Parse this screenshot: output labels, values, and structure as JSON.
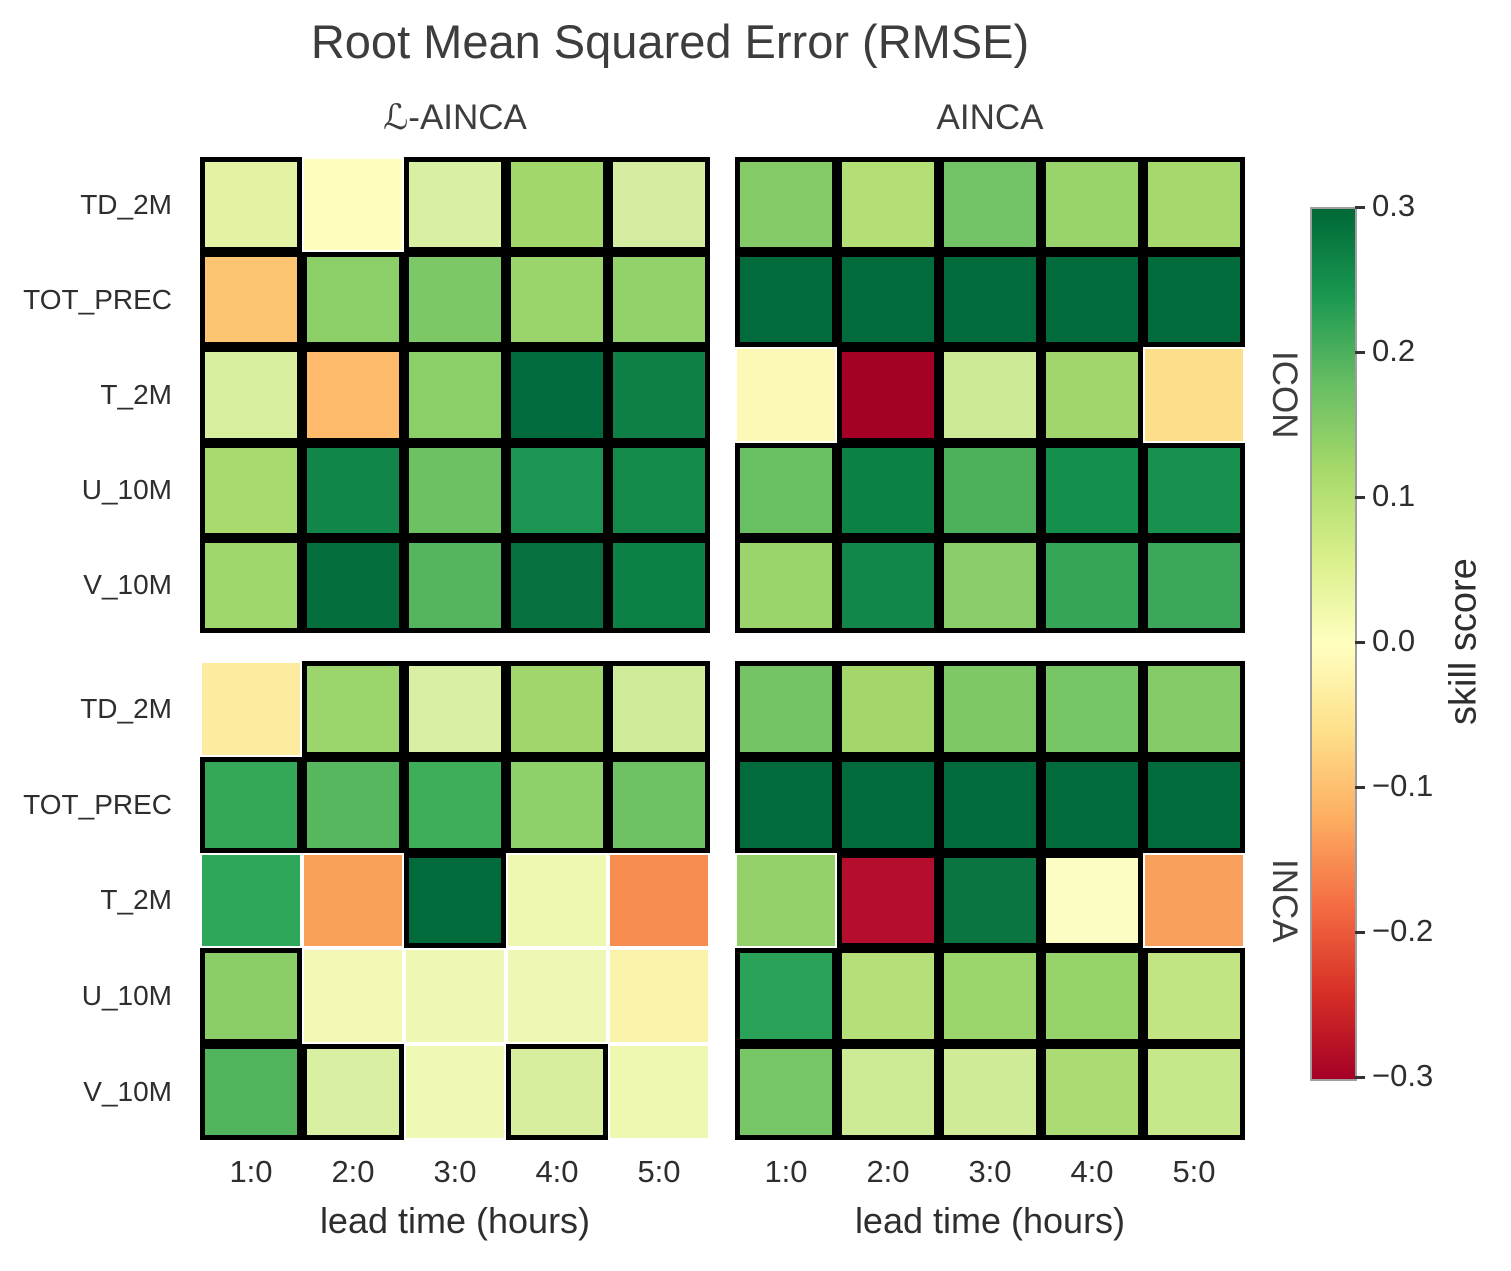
{
  "title": "Root Mean Squared Error (RMSE)",
  "panel_titles": [
    "ℒ-AINCA",
    "AINCA"
  ],
  "group_labels": [
    "ICON",
    "INCA"
  ],
  "xlabel": "lead time (hours)",
  "colorbar": {
    "label": "skill score",
    "ticks": [
      "0.3",
      "0.2",
      "0.1",
      "0.0",
      "−0.1",
      "−0.2",
      "−0.3"
    ],
    "vmin": -0.3,
    "vmax": 0.3,
    "colormap": "RdYlGn",
    "gradient": [
      "#006837",
      "#1a9850",
      "#66bd63",
      "#a6d96a",
      "#d9ef8b",
      "#ffffbf",
      "#fee08b",
      "#fdae61",
      "#f46d43",
      "#d73027",
      "#a50026"
    ]
  },
  "chart_data": {
    "type": "heatmap",
    "x": [
      "1:0",
      "2:0",
      "3:0",
      "4:0",
      "5:0"
    ],
    "y": [
      "TD_2M",
      "TOT_PREC",
      "T_2M",
      "U_10M",
      "V_10M"
    ],
    "value_range": [
      -0.3,
      0.3
    ],
    "legend_note": "thick black cell border = significant, thin white border = not significant",
    "panels": [
      {
        "model": "ℒ-AINCA",
        "reference": "ICON",
        "cells": [
          [
            {
              "v": 0.04,
              "c": "#e3f3a4",
              "s": true
            },
            {
              "v": 0.0,
              "c": "#fdfdc0",
              "s": false
            },
            {
              "v": 0.05,
              "c": "#d9efa2",
              "s": true
            },
            {
              "v": 0.12,
              "c": "#a2d76c",
              "s": true
            },
            {
              "v": 0.055,
              "c": "#d5eda0",
              "s": true
            }
          ],
          [
            {
              "v": -0.1,
              "c": "#fdc472",
              "s": true
            },
            {
              "v": 0.145,
              "c": "#8ccf69",
              "s": true
            },
            {
              "v": 0.16,
              "c": "#7cc766",
              "s": true
            },
            {
              "v": 0.135,
              "c": "#9ad46b",
              "s": true
            },
            {
              "v": 0.14,
              "c": "#93d26a",
              "s": true
            }
          ],
          [
            {
              "v": 0.055,
              "c": "#d7ef9f",
              "s": true
            },
            {
              "v": -0.105,
              "c": "#fdbb6b",
              "s": true
            },
            {
              "v": 0.145,
              "c": "#8bcf69",
              "s": true
            },
            {
              "v": 0.295,
              "c": "#006b3c",
              "s": true
            },
            {
              "v": 0.26,
              "c": "#0e8046",
              "s": true
            }
          ],
          [
            {
              "v": 0.115,
              "c": "#a8da6e",
              "s": true
            },
            {
              "v": 0.255,
              "c": "#128549",
              "s": true
            },
            {
              "v": 0.175,
              "c": "#6cc163",
              "s": true
            },
            {
              "v": 0.24,
              "c": "#1d9552",
              "s": true
            },
            {
              "v": 0.25,
              "c": "#148949",
              "s": true
            }
          ],
          [
            {
              "v": 0.12,
              "c": "#a0d76c",
              "s": true
            },
            {
              "v": 0.29,
              "c": "#046e3d",
              "s": true
            },
            {
              "v": 0.195,
              "c": "#55b55e",
              "s": true
            },
            {
              "v": 0.285,
              "c": "#06713f",
              "s": true
            },
            {
              "v": 0.26,
              "c": "#0d8045",
              "s": true
            }
          ]
        ]
      },
      {
        "model": "AINCA",
        "reference": "ICON",
        "cells": [
          [
            {
              "v": 0.155,
              "c": "#84ca67",
              "s": true
            },
            {
              "v": 0.1,
              "c": "#b4de76",
              "s": true
            },
            {
              "v": 0.17,
              "c": "#71c365",
              "s": true
            },
            {
              "v": 0.13,
              "c": "#98d36b",
              "s": true
            },
            {
              "v": 0.115,
              "c": "#a6d86d",
              "s": true
            }
          ],
          [
            {
              "v": 0.295,
              "c": "#016b3c",
              "s": true
            },
            {
              "v": 0.295,
              "c": "#016b3c",
              "s": true
            },
            {
              "v": 0.295,
              "c": "#016b3c",
              "s": true
            },
            {
              "v": 0.295,
              "c": "#016b3c",
              "s": true
            },
            {
              "v": 0.295,
              "c": "#016b3c",
              "s": true
            }
          ],
          [
            {
              "v": 0.005,
              "c": "#fcf9b6",
              "s": false
            },
            {
              "v": -0.295,
              "c": "#a50126",
              "s": true
            },
            {
              "v": 0.07,
              "c": "#cdea97",
              "s": true
            },
            {
              "v": 0.12,
              "c": "#a0d66c",
              "s": true
            },
            {
              "v": -0.06,
              "c": "#fdde8a",
              "s": false
            }
          ],
          [
            {
              "v": 0.18,
              "c": "#68c063",
              "s": true
            },
            {
              "v": 0.26,
              "c": "#0c8045",
              "s": true
            },
            {
              "v": 0.2,
              "c": "#4db15c",
              "s": true
            },
            {
              "v": 0.245,
              "c": "#15904c",
              "s": true
            },
            {
              "v": 0.245,
              "c": "#17914d",
              "s": true
            }
          ],
          [
            {
              "v": 0.125,
              "c": "#9ad46a",
              "s": true
            },
            {
              "v": 0.25,
              "c": "#138749",
              "s": true
            },
            {
              "v": 0.145,
              "c": "#8bce69",
              "s": true
            },
            {
              "v": 0.215,
              "c": "#35a557",
              "s": true
            },
            {
              "v": 0.21,
              "c": "#3aa75a",
              "s": true
            }
          ]
        ]
      },
      {
        "model": "ℒ-AINCA",
        "reference": "INCA",
        "cells": [
          [
            {
              "v": -0.045,
              "c": "#fdeb9f",
              "s": false
            },
            {
              "v": 0.125,
              "c": "#9cd56b",
              "s": true
            },
            {
              "v": 0.05,
              "c": "#d9efa1",
              "s": true
            },
            {
              "v": 0.12,
              "c": "#a0d66c",
              "s": true
            },
            {
              "v": 0.06,
              "c": "#d0ec9b",
              "s": true
            }
          ],
          [
            {
              "v": 0.215,
              "c": "#34a858",
              "s": true
            },
            {
              "v": 0.19,
              "c": "#57b75f",
              "s": true
            },
            {
              "v": 0.205,
              "c": "#3fae59",
              "s": true
            },
            {
              "v": 0.14,
              "c": "#8ed06a",
              "s": true
            },
            {
              "v": 0.17,
              "c": "#6ec264",
              "s": true
            }
          ],
          [
            {
              "v": 0.215,
              "c": "#2fa75a",
              "s": false
            },
            {
              "v": -0.13,
              "c": "#f9a159",
              "s": false
            },
            {
              "v": 0.295,
              "c": "#016b3b",
              "s": true
            },
            {
              "v": 0.025,
              "c": "#f0f7b1",
              "s": false
            },
            {
              "v": -0.155,
              "c": "#f68c50",
              "s": false
            }
          ],
          [
            {
              "v": 0.145,
              "c": "#8bce68",
              "s": true
            },
            {
              "v": 0.02,
              "c": "#f3f9b5",
              "s": false
            },
            {
              "v": 0.025,
              "c": "#f0f7b4",
              "s": false
            },
            {
              "v": 0.025,
              "c": "#eef7b3",
              "s": false
            },
            {
              "v": -0.01,
              "c": "#faf3ac",
              "s": false
            }
          ],
          [
            {
              "v": 0.195,
              "c": "#53b45e",
              "s": true
            },
            {
              "v": 0.05,
              "c": "#d9efa1",
              "s": true
            },
            {
              "v": 0.02,
              "c": "#f0f8b6",
              "s": false
            },
            {
              "v": 0.055,
              "c": "#d6ee9e",
              "s": true
            },
            {
              "v": 0.025,
              "c": "#eff7b0",
              "s": false
            }
          ]
        ]
      },
      {
        "model": "AINCA",
        "reference": "INCA",
        "cells": [
          [
            {
              "v": 0.165,
              "c": "#74c465",
              "s": true
            },
            {
              "v": 0.12,
              "c": "#a3d76c",
              "s": true
            },
            {
              "v": 0.155,
              "c": "#7ec865",
              "s": true
            },
            {
              "v": 0.165,
              "c": "#77c565",
              "s": true
            },
            {
              "v": 0.15,
              "c": "#84ca67",
              "s": true
            }
          ],
          [
            {
              "v": 0.295,
              "c": "#016b3c",
              "s": true
            },
            {
              "v": 0.295,
              "c": "#016b3c",
              "s": true
            },
            {
              "v": 0.295,
              "c": "#016b3c",
              "s": true
            },
            {
              "v": 0.295,
              "c": "#016b3c",
              "s": true
            },
            {
              "v": 0.295,
              "c": "#016b3c",
              "s": true
            }
          ],
          [
            {
              "v": 0.135,
              "c": "#94d16a",
              "s": false
            },
            {
              "v": -0.28,
              "c": "#b50d2e",
              "s": true
            },
            {
              "v": 0.275,
              "c": "#0a7541",
              "s": true
            },
            {
              "v": 0.0,
              "c": "#fbfdc2",
              "s": true
            },
            {
              "v": -0.13,
              "c": "#f9a05c",
              "s": false
            }
          ],
          [
            {
              "v": 0.22,
              "c": "#2aa257",
              "s": true
            },
            {
              "v": 0.1,
              "c": "#b5df79",
              "s": true
            },
            {
              "v": 0.125,
              "c": "#9cd56b",
              "s": true
            },
            {
              "v": 0.13,
              "c": "#97d36b",
              "s": true
            },
            {
              "v": 0.08,
              "c": "#c2e482",
              "s": true
            }
          ],
          [
            {
              "v": 0.16,
              "c": "#79c666",
              "s": true
            },
            {
              "v": 0.07,
              "c": "#cdea95",
              "s": true
            },
            {
              "v": 0.065,
              "c": "#d0eb98",
              "s": true
            },
            {
              "v": 0.11,
              "c": "#abdb72",
              "s": true
            },
            {
              "v": 0.075,
              "c": "#c6e88a",
              "s": true
            }
          ]
        ]
      }
    ]
  }
}
